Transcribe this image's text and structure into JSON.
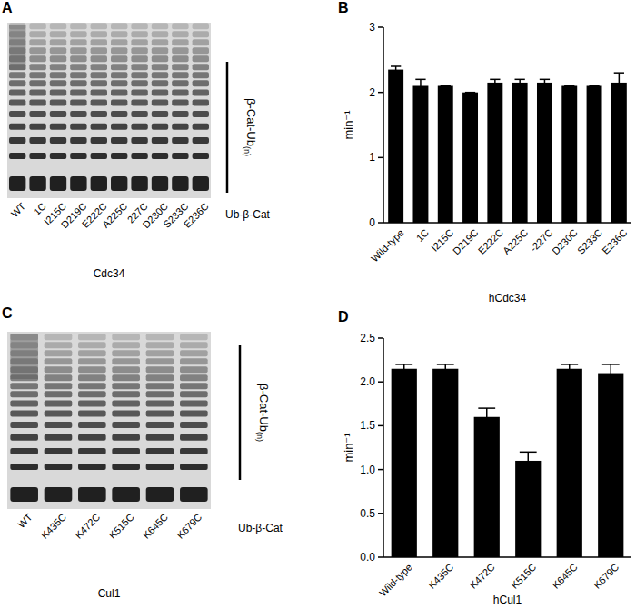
{
  "chart_data": [
    {
      "type": "bar",
      "title": "B",
      "x_label": "hCdc34",
      "y_label": "min⁻¹",
      "categories": [
        "Wild-type",
        "1C",
        "I215C",
        "D219C",
        "E222C",
        "A225C",
        "-227C",
        "D230C",
        "S233C",
        "E236C"
      ],
      "values": [
        2.35,
        2.1,
        2.1,
        2.0,
        2.15,
        2.15,
        2.15,
        2.1,
        2.1,
        2.15
      ],
      "errors": [
        0.05,
        0.1,
        0,
        0,
        0.05,
        0.05,
        0.05,
        0,
        0,
        0.15
      ],
      "color": "#000000",
      "ylim": [
        0,
        3
      ],
      "yticks": [
        0,
        1,
        2,
        3
      ],
      "grid": false
    },
    {
      "type": "bar",
      "title": "D",
      "x_label": "hCul1",
      "y_label": "min⁻¹",
      "categories": [
        "Wild-type",
        "K435C",
        "K472C",
        "K515C",
        "K645C",
        "K679C"
      ],
      "values": [
        2.15,
        2.15,
        1.6,
        1.1,
        2.15,
        2.1
      ],
      "errors": [
        0.05,
        0.05,
        0.1,
        0.1,
        0.05,
        0.1
      ],
      "color": "#000000",
      "ylim": [
        0,
        2.5
      ],
      "yticks": [
        {
          "value": 0,
          "label": "0.0"
        },
        {
          "value": 0.5,
          "label": "0.5"
        },
        {
          "value": 1,
          "label": "1.0"
        },
        {
          "value": 1.5,
          "label": "1.5"
        },
        {
          "value": 2,
          "label": "2.0"
        },
        {
          "value": 2.5,
          "label": "2.5"
        }
      ],
      "grid": false
    }
  ],
  "gels": [
    {
      "panel": "A",
      "lanes": [
        "WT",
        "1C",
        "I215C",
        "D219C",
        "E222C",
        "A225C",
        "227C",
        "D230C",
        "S233C",
        "E236C"
      ],
      "x_label": "Cdc34",
      "ladder_label": "β-Cat-Ub",
      "ladder_subscript": "(n)",
      "substrate_label": "Ub-β-Cat"
    },
    {
      "panel": "C",
      "lanes": [
        "WT",
        "K435C",
        "K472C",
        "K515C",
        "K645C",
        "K679C"
      ],
      "x_label": "Cul1",
      "ladder_label": "β-Cat-Ub",
      "ladder_subscript": "(n)",
      "substrate_label": "Ub-β-Cat"
    }
  ]
}
